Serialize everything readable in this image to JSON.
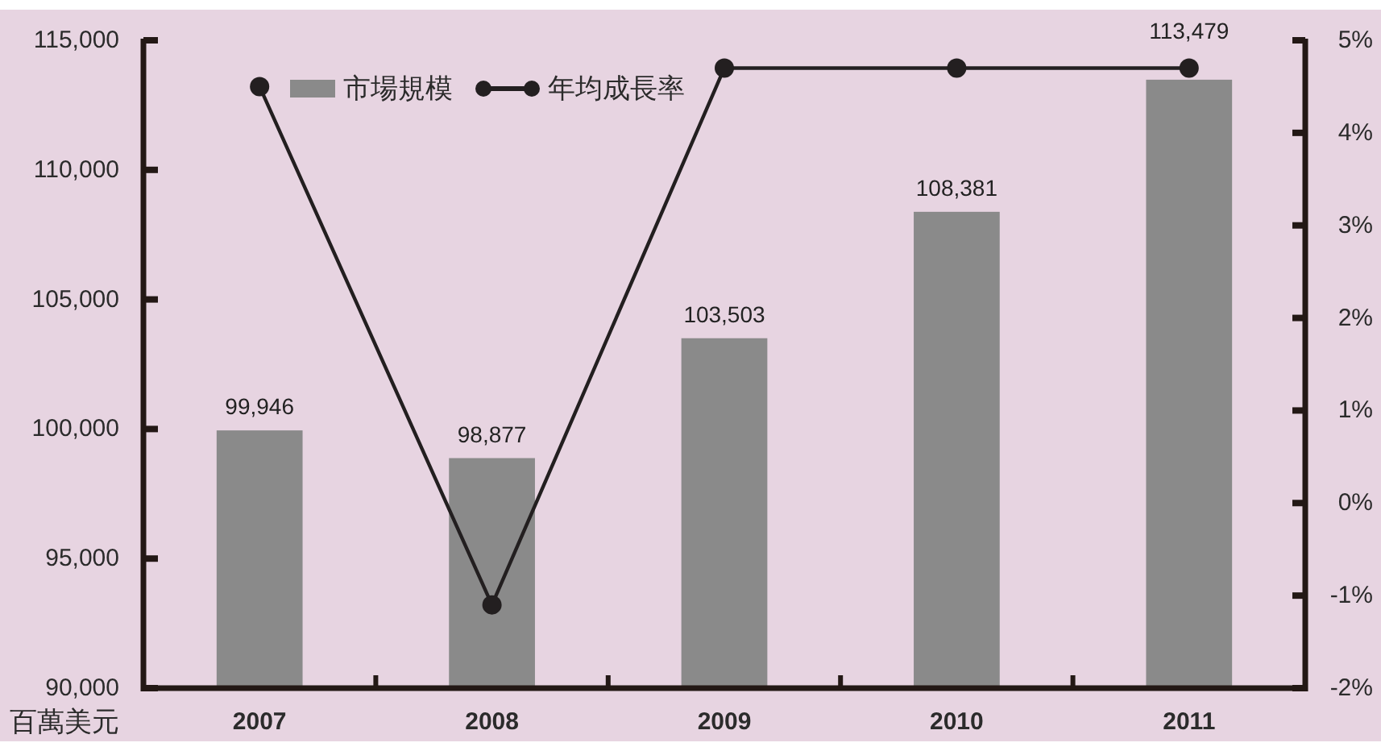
{
  "chart_data": {
    "type": "bar",
    "ylabel": "百萬美元",
    "categories": [
      "2007",
      "2008",
      "2009",
      "2010",
      "2011"
    ],
    "series": [
      {
        "name": "市場規模",
        "color": "#8a8a8a",
        "values": [
          99946,
          98877,
          103503,
          108381,
          113479
        ],
        "value_labels": [
          "99,946",
          "98,877",
          "103,503",
          "108,381",
          "113,479"
        ]
      },
      {
        "name": "年均成長率",
        "type": "line",
        "axis": "y2",
        "color": "#231f20",
        "values": [
          4.5,
          -1.1,
          4.7,
          4.7,
          4.7
        ]
      }
    ],
    "ylim": [
      90000,
      115000
    ],
    "yticks": [
      {
        "value": 90000,
        "label": "90,000"
      },
      {
        "value": 95000,
        "label": "95,000"
      },
      {
        "value": 100000,
        "label": "100,000"
      },
      {
        "value": 105000,
        "label": "105,000"
      },
      {
        "value": 110000,
        "label": "110,000"
      },
      {
        "value": 115000,
        "label": "115,000"
      }
    ],
    "y2lim": [
      -2,
      5
    ],
    "y2ticks": [
      {
        "value": -2,
        "label": "-2%"
      },
      {
        "value": -1,
        "label": "-1%"
      },
      {
        "value": 0,
        "label": "0%"
      },
      {
        "value": 1,
        "label": "1%"
      },
      {
        "value": 2,
        "label": "2%"
      },
      {
        "value": 3,
        "label": "3%"
      },
      {
        "value": 4,
        "label": "4%"
      },
      {
        "value": 5,
        "label": "5%"
      }
    ],
    "legend": "top left",
    "marker": "circle"
  }
}
